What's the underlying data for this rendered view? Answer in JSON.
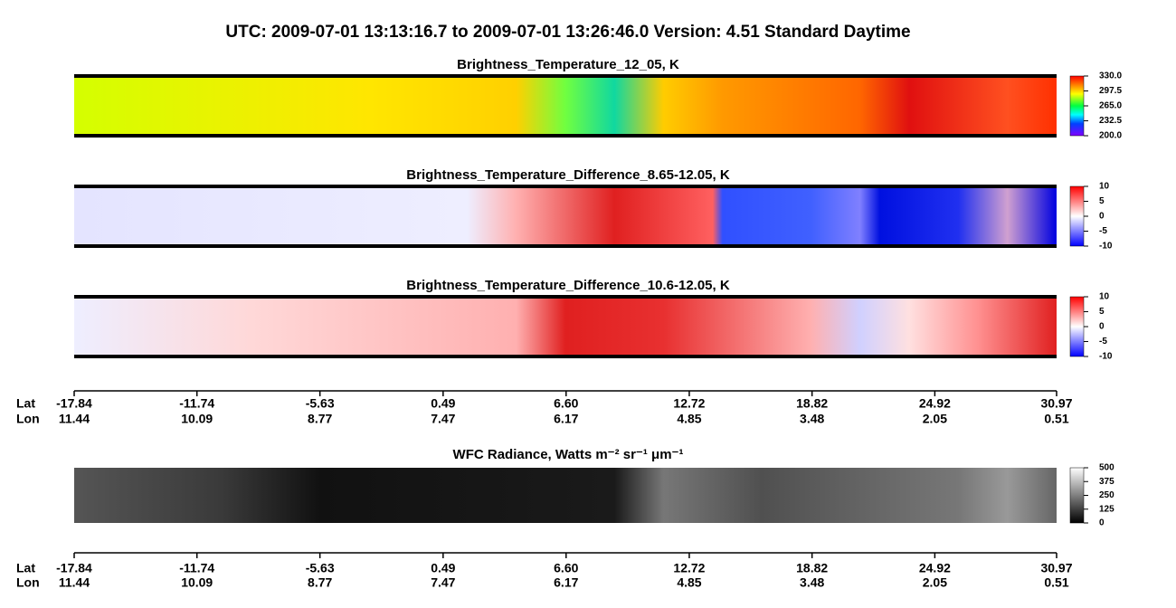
{
  "title": "UTC:  2009-07-01   13:13:16.7  to  2009-07-01   13:26:46.0    Version: 4.51  Standard Daytime",
  "panels": [
    {
      "title": "Brightness_Temperature_12_05, K",
      "colorbar": {
        "lim": [
          200,
          330
        ],
        "ticks": [
          {
            "value": 330,
            "label": "330.0"
          },
          {
            "value": 297.5,
            "label": "297.5"
          },
          {
            "value": 265,
            "label": "265.0"
          },
          {
            "value": 232.5,
            "label": "232.5"
          },
          {
            "value": 200,
            "label": "200.0"
          }
        ]
      }
    },
    {
      "title": "Brightness_Temperature_Difference_8.65-12.05, K",
      "colorbar": {
        "lim": [
          -10,
          10
        ],
        "ticks": [
          10,
          5,
          0,
          -5,
          -10
        ]
      }
    },
    {
      "title": "Brightness_Temperature_Difference_10.6-12.05, K",
      "colorbar": {
        "lim": [
          -10,
          10
        ],
        "ticks": [
          10,
          5,
          0,
          -5,
          -10
        ]
      }
    },
    {
      "title": "WFC Radiance, Watts m⁻² sr⁻¹ μm⁻¹",
      "colorbar": {
        "lim": [
          0,
          500
        ],
        "ticks": [
          500,
          375,
          250,
          125,
          0
        ]
      }
    }
  ],
  "axis": {
    "lat_label": "Lat",
    "lon_label": "Lon",
    "lat": [
      -17.84,
      -11.74,
      -5.63,
      0.49,
      {
        "value": 6.6,
        "label": "6.60"
      },
      12.72,
      18.82,
      24.92,
      30.97
    ],
    "lon": [
      11.44,
      10.09,
      8.77,
      7.47,
      6.17,
      4.85,
      3.48,
      2.05,
      0.51
    ]
  }
}
